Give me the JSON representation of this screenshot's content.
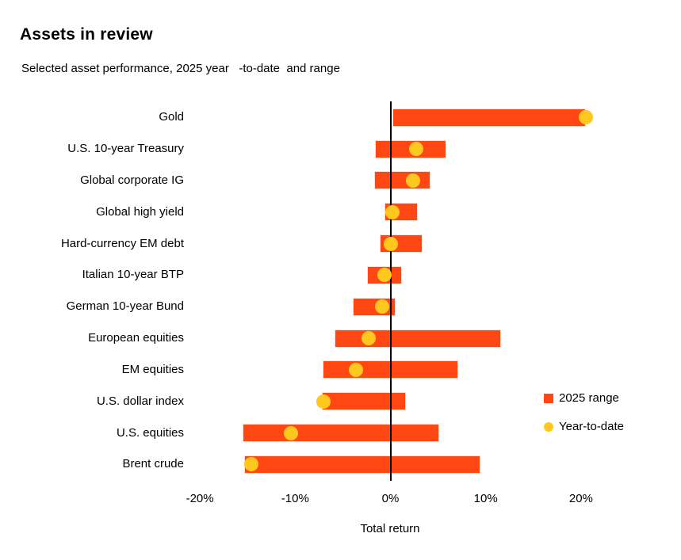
{
  "header": {
    "title": "Assets in review",
    "subtitle": "Selected asset performance, 2025 year   -to-date  and range"
  },
  "colors": {
    "range_bar": "#FF4713",
    "ytd_dot": "#FFC81E",
    "axis_line": "#000000",
    "text": "#000000",
    "background": "#FFFFFF"
  },
  "legend": {
    "range_label": "2025 range",
    "ytd_label": "Year-to-date"
  },
  "chart_data": {
    "type": "bar",
    "subtype": "horizontal_range_bars_with_ytd_points",
    "title": "Assets in review",
    "subtitle": "Selected asset performance, 2025 year-to-date and range",
    "xlabel": "Total return",
    "x_tick_labels": [
      "-20%",
      "-10%",
      "0%",
      "10%",
      "20%"
    ],
    "x_tick_values": [
      -20,
      -10,
      0,
      10,
      20
    ],
    "xlim": [
      -24,
      26
    ],
    "grid": false,
    "legend_position": "right",
    "unit": "percent total return",
    "categories": [
      "Gold",
      "U.S. 10-year Treasury",
      "Global corporate IG",
      "Global high yield",
      "Hard-currency EM debt",
      "Italian 10-year BTP",
      "German 10-year Bund",
      "European equities",
      "EM equities",
      "U.S. dollar index",
      "U.S. equities",
      "Brent crude"
    ],
    "series": [
      {
        "name": "2025 range",
        "style": "range_bar",
        "values_pct": [
          [
            0.3,
            20.4
          ],
          [
            -1.5,
            5.8
          ],
          [
            -1.6,
            4.1
          ],
          [
            -0.5,
            2.8
          ],
          [
            -1.0,
            3.3
          ],
          [
            -2.4,
            1.1
          ],
          [
            -3.9,
            0.5
          ],
          [
            -5.8,
            11.5
          ],
          [
            -7.0,
            7.0
          ],
          [
            -7.1,
            1.5
          ],
          [
            -15.4,
            5.0
          ],
          [
            -15.3,
            9.4
          ]
        ]
      },
      {
        "name": "Year-to-date",
        "style": "point",
        "values_pct": [
          20.5,
          2.7,
          2.4,
          0.2,
          0.0,
          -0.6,
          -0.9,
          -2.3,
          -3.6,
          -7.0,
          -10.4,
          -14.6
        ]
      }
    ]
  }
}
